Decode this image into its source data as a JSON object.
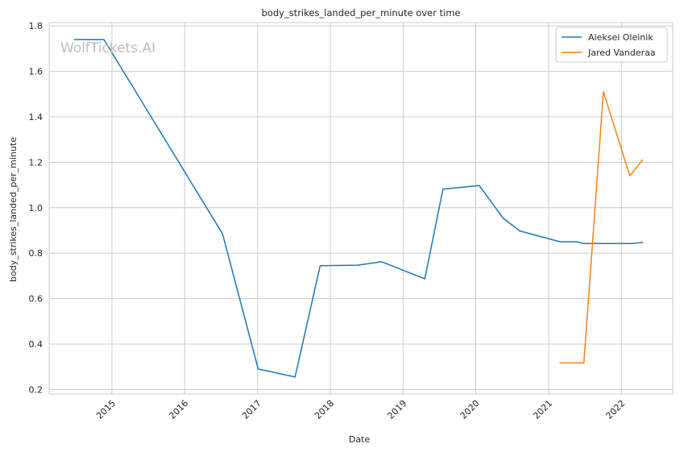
{
  "chart_data": {
    "type": "line",
    "title": "body_strikes_landed_per_minute over time",
    "xlabel": "Date",
    "ylabel": "body_strikes_landed_per_minute",
    "watermark": "WolfTickets.AI",
    "xlim": [
      "2014-02-20",
      "2022-09-15"
    ],
    "ylim": [
      0.18,
      1.815
    ],
    "x_ticks": [
      "2015",
      "2016",
      "2017",
      "2018",
      "2019",
      "2020",
      "2021",
      "2022"
    ],
    "y_ticks": [
      0.2,
      0.4,
      0.6,
      0.8,
      1.0,
      1.2,
      1.4,
      1.6,
      1.8
    ],
    "y_tick_labels": [
      "0.2",
      "0.4",
      "0.6",
      "0.8",
      "1.0",
      "1.2",
      "1.4",
      "1.6",
      "1.8"
    ],
    "grid": true,
    "legend_position": "top-right",
    "series": [
      {
        "name": "Aleksei Oleinik",
        "color": "#1f77b4",
        "points": [
          [
            "2014-06-28",
            1.74
          ],
          [
            "2014-11-22",
            1.74
          ],
          [
            "2016-07-09",
            0.885
          ],
          [
            "2017-01-04",
            0.29
          ],
          [
            "2017-07-08",
            0.255
          ],
          [
            "2017-11-11",
            0.745
          ],
          [
            "2018-05-19",
            0.747
          ],
          [
            "2018-09-15",
            0.762
          ],
          [
            "2019-04-20",
            0.687
          ],
          [
            "2019-07-20",
            1.082
          ],
          [
            "2020-01-18",
            1.098
          ],
          [
            "2020-05-16",
            0.955
          ],
          [
            "2020-08-08",
            0.898
          ],
          [
            "2021-02-27",
            0.85
          ],
          [
            "2021-05-22",
            0.85
          ],
          [
            "2021-06-26",
            0.842
          ],
          [
            "2022-02-19",
            0.842
          ],
          [
            "2022-04-16",
            0.847
          ]
        ]
      },
      {
        "name": "Jared Vanderaa",
        "color": "#ff7f0e",
        "points": [
          [
            "2021-02-27",
            0.317
          ],
          [
            "2021-06-26",
            0.317
          ],
          [
            "2021-10-02",
            1.51
          ],
          [
            "2022-02-12",
            1.14
          ],
          [
            "2022-04-16",
            1.21
          ]
        ]
      }
    ]
  }
}
